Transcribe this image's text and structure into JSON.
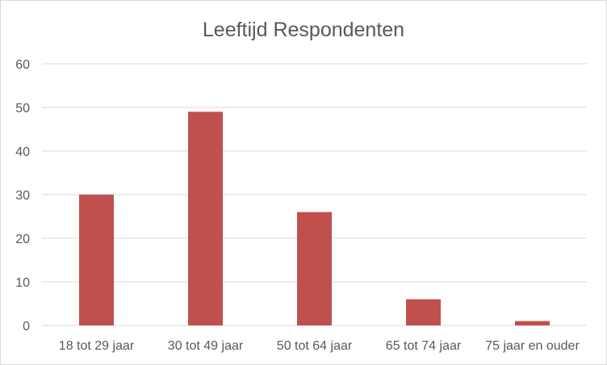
{
  "chart_data": {
    "type": "bar",
    "title": "Leeftijd Respondenten",
    "categories": [
      "18 tot 29 jaar",
      "30 tot 49 jaar",
      "50 tot 64 jaar",
      "65 tot 74 jaar",
      "75 jaar en ouder"
    ],
    "values": [
      30,
      49,
      26,
      6,
      1
    ],
    "ylim": [
      0,
      60
    ],
    "yticks": [
      "0",
      "10",
      "20",
      "30",
      "40",
      "50",
      "60"
    ],
    "grid": true,
    "legend": "none",
    "bar_color": "#c0504d"
  }
}
